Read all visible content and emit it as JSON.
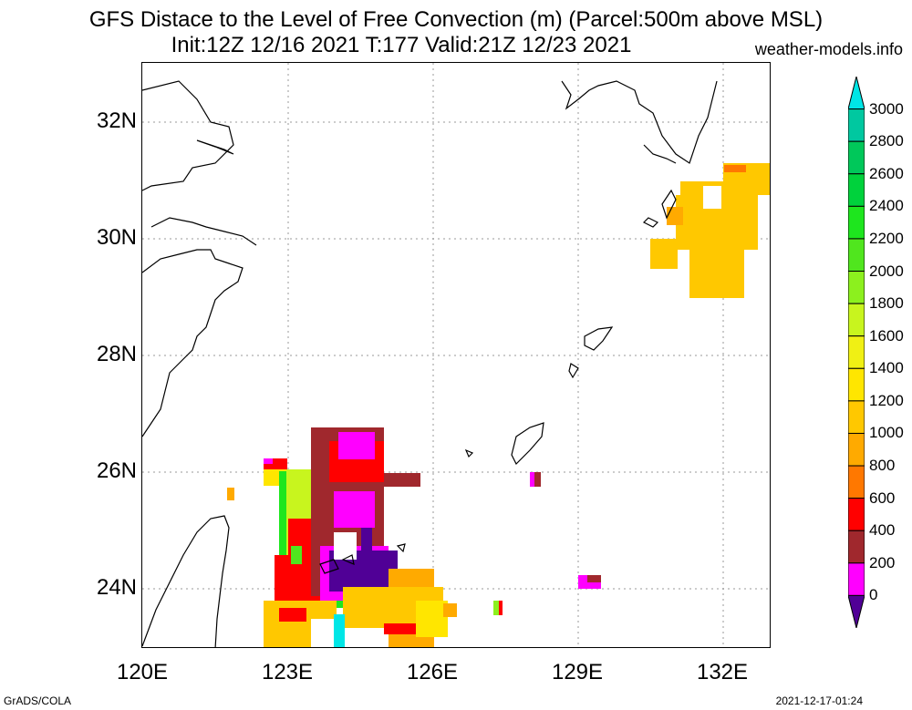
{
  "header": {
    "title_line1": "GFS Distace to the Level of Free Convection (m) (Parcel:500m above MSL)",
    "title_line2": "Init:12Z 12/16 2021 T:177 Valid:21Z 12/23 2021",
    "site": "weather-models.info"
  },
  "axes": {
    "lat_labels": [
      "32N",
      "30N",
      "28N",
      "26N",
      "24N"
    ],
    "lon_labels": [
      "120E",
      "123E",
      "126E",
      "129E",
      "132E"
    ]
  },
  "colorbar": {
    "labels": [
      "3000",
      "2800",
      "2600",
      "2400",
      "2200",
      "2000",
      "1800",
      "1600",
      "1400",
      "1200",
      "1000",
      "800",
      "600",
      "400",
      "200",
      "0"
    ],
    "colors": [
      "#00e6e6",
      "#00c8a0",
      "#00c85a",
      "#00d23c",
      "#1ee61e",
      "#50e61e",
      "#8cf01e",
      "#c8f51e",
      "#f0f014",
      "#ffe600",
      "#ffc800",
      "#ffaa00",
      "#ff7800",
      "#ff0000",
      "#a0282d",
      "#ff00ff",
      "#500096"
    ]
  },
  "footer": {
    "left": "GrADS/COLA",
    "right": "2021-12-17-01:24"
  }
}
